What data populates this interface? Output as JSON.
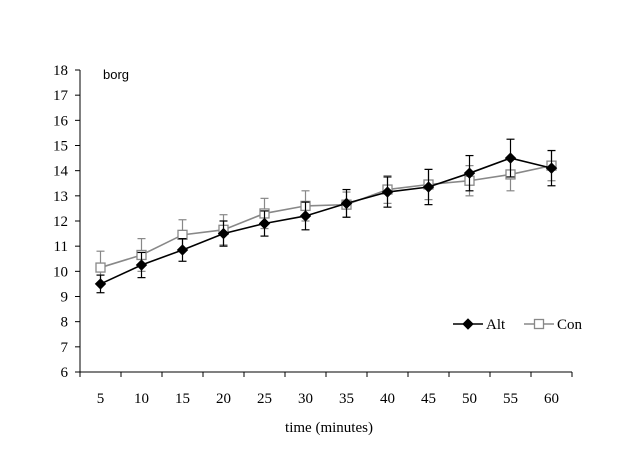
{
  "chart_data": {
    "type": "line",
    "inner_label": "borg",
    "xlabel": "time (minutes)",
    "ylabel": "",
    "categories": [
      "5",
      "10",
      "15",
      "20",
      "25",
      "30",
      "35",
      "40",
      "45",
      "50",
      "55",
      "60"
    ],
    "y_ticks": [
      "6",
      "7",
      "8",
      "9",
      "10",
      "11",
      "12",
      "13",
      "14",
      "15",
      "16",
      "17",
      "18"
    ],
    "ylim": [
      6,
      18
    ],
    "grid": false,
    "legend_position": "bottom-right",
    "series": [
      {
        "name": "Alt",
        "color": "#000000",
        "marker": "filled-diamond",
        "values": [
          9.5,
          10.25,
          10.85,
          11.5,
          11.9,
          12.2,
          12.7,
          13.15,
          13.35,
          13.9,
          14.5,
          14.1
        ],
        "errors": [
          0.35,
          0.5,
          0.45,
          0.5,
          0.5,
          0.55,
          0.55,
          0.6,
          0.7,
          0.7,
          0.75,
          0.7
        ]
      },
      {
        "name": "Con",
        "color": "#888888",
        "marker": "open-square",
        "values": [
          10.15,
          10.65,
          11.45,
          11.65,
          12.3,
          12.6,
          12.65,
          13.25,
          13.45,
          13.6,
          13.85,
          14.2
        ],
        "errors": [
          0.65,
          0.65,
          0.6,
          0.6,
          0.6,
          0.6,
          0.5,
          0.55,
          0.6,
          0.6,
          0.65,
          0.6
        ]
      }
    ]
  }
}
